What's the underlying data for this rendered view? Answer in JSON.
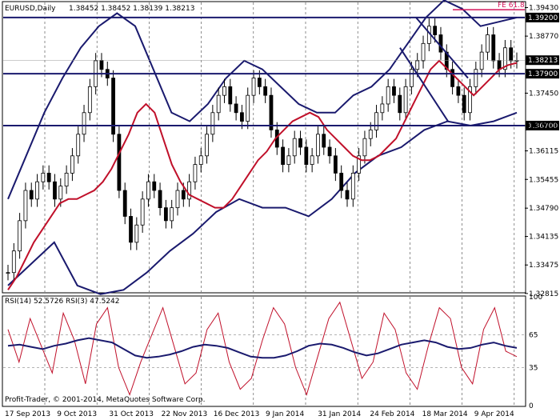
{
  "header": {
    "symbol_label": "EURUSD,Daily",
    "ohlc": "1.38452 1.38452 1.38139 1.38213"
  },
  "footer": {
    "copyright": "Profit-Trader, © 2001-2014, MetaQuotes Software Corp."
  },
  "colors": {
    "price": "#000000",
    "ma": "#c0102a",
    "bands": "#1a1a6e",
    "level": "#1a1a6e",
    "fib": "#d4145a",
    "rsi_fast": "#c0102a",
    "rsi_slow": "#1a1a6e",
    "tag_bg": "#000000",
    "tag_text": "#ffffff"
  },
  "chart_data": [
    {
      "type": "candlestick",
      "ylim": [
        1.3285,
        1.3955
      ],
      "y_ticks": [
        "1.39430",
        "1.38770",
        "1.38213",
        "1.37450",
        "1.36700",
        "1.36115",
        "1.35455",
        "1.34790",
        "1.34135",
        "1.33475",
        "1.32815"
      ],
      "x_labels": [
        "17 Sep 2013",
        "9 Oct 2013",
        "31 Oct 2013",
        "22 Nov 2013",
        "16 Dec 2013",
        "9 Jan 2014",
        "31 Jan 2014",
        "24 Feb 2014",
        "18 Mar 2014",
        "9 Apr 2014"
      ],
      "current_price": "1.38213",
      "levels": [
        {
          "label": "1.39200",
          "value": 1.392
        },
        {
          "label": "1.37900",
          "value": 1.379
        },
        {
          "label": "1.36700",
          "value": 1.367
        }
      ],
      "fib_label": "FE 61.8",
      "fib_value": 1.3938,
      "close_series": [
        1.333,
        1.338,
        1.345,
        1.352,
        1.35,
        1.354,
        1.356,
        1.354,
        1.35,
        1.353,
        1.356,
        1.36,
        1.365,
        1.37,
        1.376,
        1.382,
        1.38,
        1.378,
        1.365,
        1.352,
        1.346,
        1.34,
        1.344,
        1.35,
        1.354,
        1.352,
        1.348,
        1.345,
        1.348,
        1.352,
        1.35,
        1.354,
        1.358,
        1.36,
        1.365,
        1.37,
        1.374,
        1.376,
        1.372,
        1.37,
        1.368,
        1.374,
        1.378,
        1.376,
        1.374,
        1.366,
        1.362,
        1.358,
        1.36,
        1.364,
        1.362,
        1.358,
        1.36,
        1.365,
        1.362,
        1.36,
        1.356,
        1.352,
        1.35,
        1.356,
        1.36,
        1.364,
        1.366,
        1.37,
        1.372,
        1.376,
        1.374,
        1.37,
        1.376,
        1.38,
        1.382,
        1.386,
        1.39,
        1.388,
        1.384,
        1.38,
        1.376,
        1.374,
        1.37,
        1.376,
        1.38,
        1.384,
        1.388,
        1.382,
        1.38,
        1.385,
        1.382,
        1.3821
      ],
      "ma_series": [
        1.329,
        1.332,
        1.336,
        1.34,
        1.343,
        1.346,
        1.349,
        1.35,
        1.35,
        1.351,
        1.352,
        1.354,
        1.357,
        1.361,
        1.365,
        1.37,
        1.372,
        1.37,
        1.364,
        1.358,
        1.354,
        1.351,
        1.35,
        1.349,
        1.348,
        1.348,
        1.35,
        1.353,
        1.356,
        1.359,
        1.361,
        1.364,
        1.366,
        1.368,
        1.369,
        1.37,
        1.369,
        1.366,
        1.364,
        1.362,
        1.36,
        1.359,
        1.359,
        1.36,
        1.362,
        1.364,
        1.368,
        1.372,
        1.376,
        1.38,
        1.382,
        1.38,
        1.378,
        1.376,
        1.374,
        1.376,
        1.378,
        1.38,
        1.381,
        1.3815
      ],
      "upper_band": [
        1.35,
        1.36,
        1.37,
        1.378,
        1.385,
        1.39,
        1.393,
        1.39,
        1.38,
        1.37,
        1.368,
        1.372,
        1.378,
        1.382,
        1.38,
        1.376,
        1.372,
        1.37,
        1.37,
        1.374,
        1.376,
        1.38,
        1.386,
        1.392,
        1.396,
        1.394,
        1.39,
        1.391,
        1.392
      ],
      "lower_band": [
        1.33,
        1.335,
        1.34,
        1.33,
        1.328,
        1.329,
        1.333,
        1.338,
        1.342,
        1.347,
        1.35,
        1.348,
        1.348,
        1.346,
        1.35,
        1.356,
        1.36,
        1.362,
        1.366,
        1.368,
        1.367,
        1.368,
        1.37
      ],
      "rsi_title": "RSI(14) 52.5726  RSI(3) 47.5242",
      "rsi_ticks": [
        "100",
        "65",
        "35",
        "0"
      ],
      "rsi_levels": [
        65,
        35
      ],
      "rsi14_series": [
        55,
        56,
        54,
        52,
        55,
        57,
        60,
        62,
        60,
        58,
        52,
        46,
        44,
        45,
        47,
        50,
        54,
        56,
        55,
        53,
        49,
        45,
        44,
        44,
        46,
        50,
        55,
        57,
        56,
        53,
        49,
        46,
        48,
        52,
        56,
        58,
        60,
        58,
        54,
        52,
        53,
        56,
        58,
        55,
        53
      ],
      "rsi3_series": [
        70,
        40,
        80,
        55,
        30,
        85,
        60,
        20,
        75,
        90,
        35,
        10,
        40,
        65,
        90,
        55,
        20,
        30,
        70,
        85,
        40,
        15,
        25,
        60,
        90,
        75,
        35,
        10,
        45,
        80,
        95,
        60,
        25,
        40,
        85,
        70,
        30,
        15,
        55,
        90,
        80,
        35,
        20,
        70,
        90,
        50,
        45
      ]
    }
  ]
}
